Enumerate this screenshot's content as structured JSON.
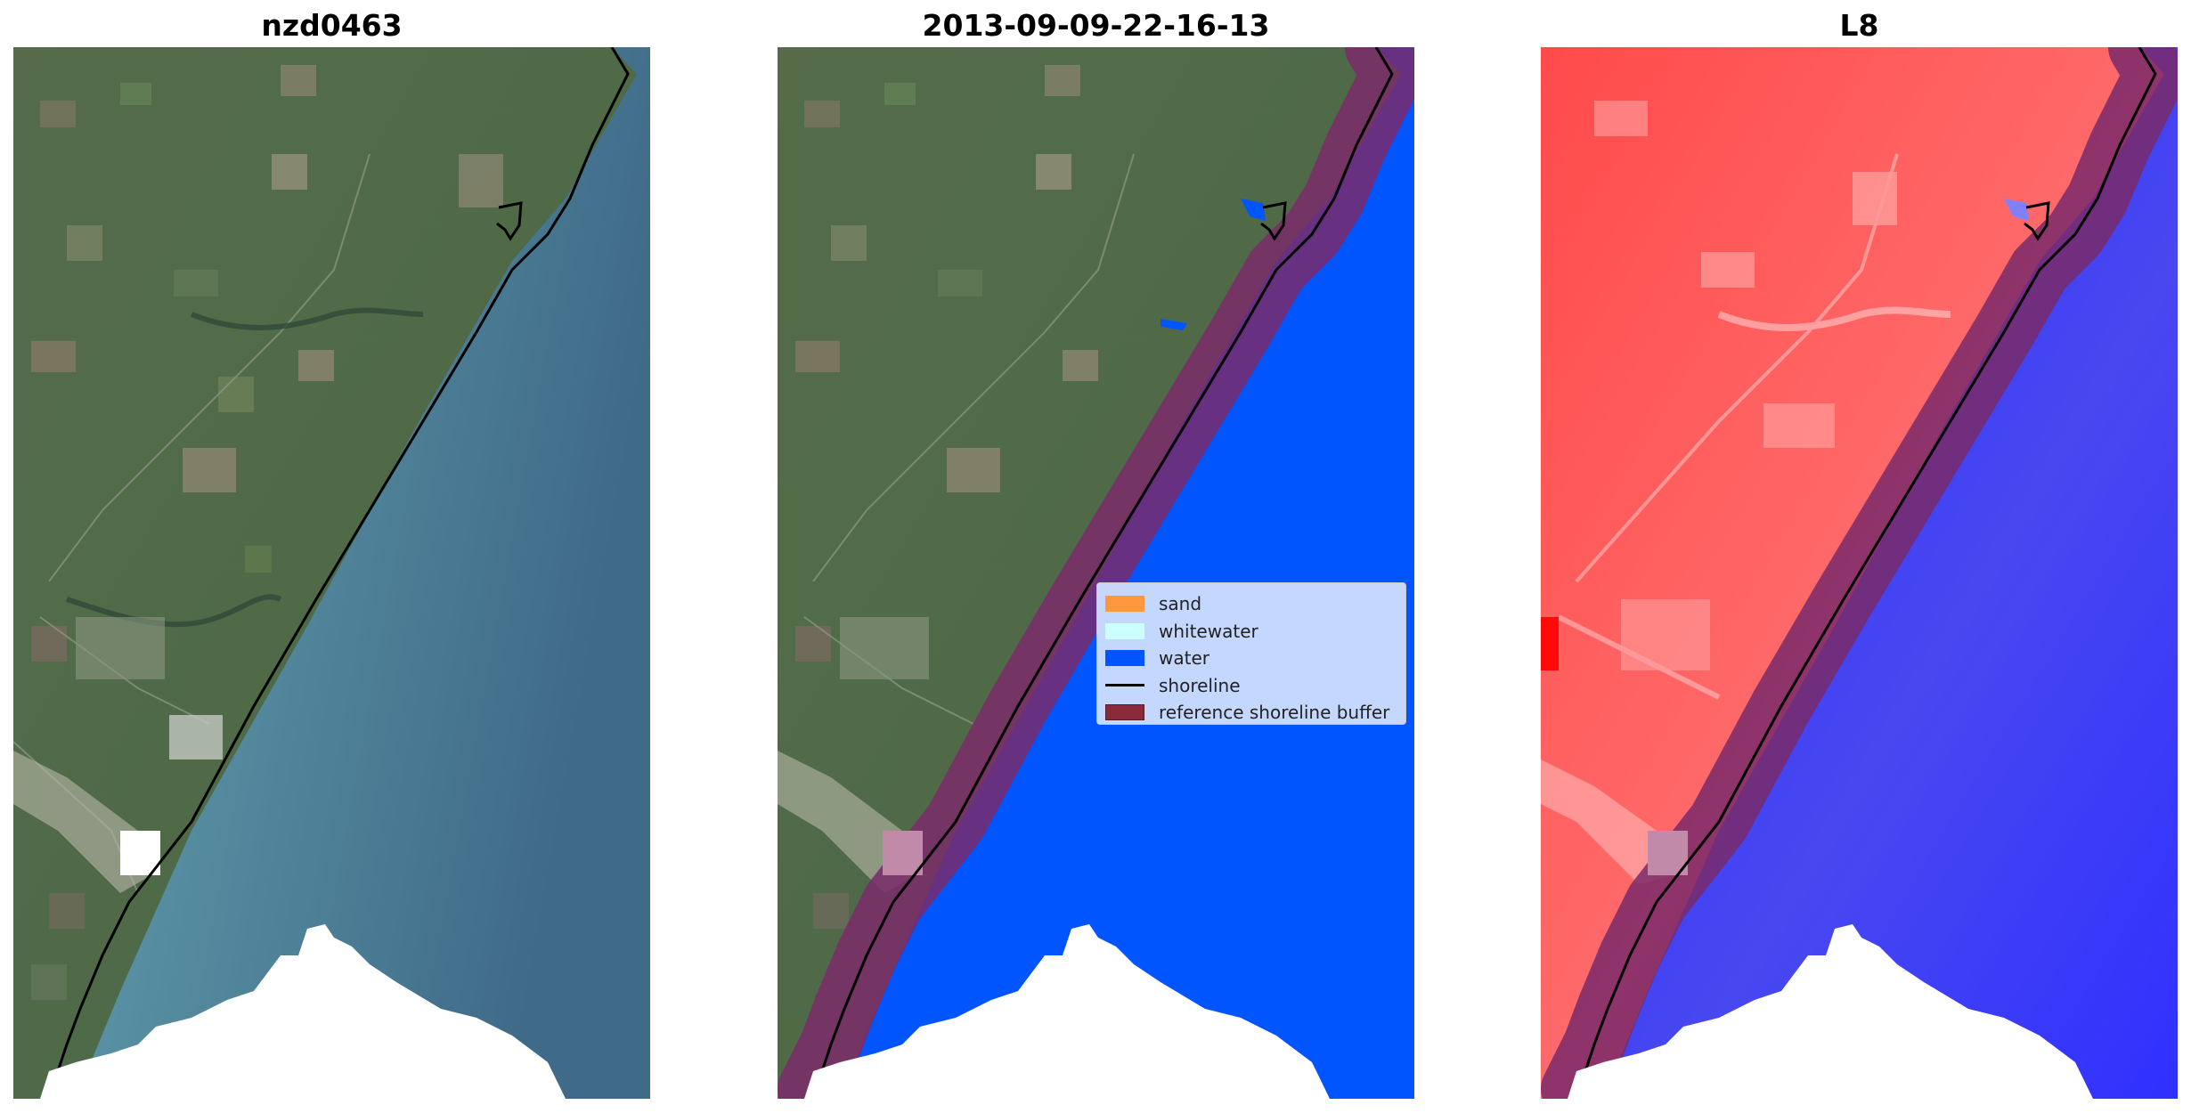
{
  "figure": {
    "panels": [
      {
        "title": "nzd0463",
        "content": "rgb-image"
      },
      {
        "title": "2013-09-09-22-16-13",
        "content": "classified-image"
      },
      {
        "title": "L8",
        "content": "water-index-image"
      }
    ],
    "legend": {
      "placement": "center-right of middle panel",
      "items": [
        {
          "label": "sand",
          "kind": "patch",
          "color": "#ff9640"
        },
        {
          "label": "whitewater",
          "kind": "patch",
          "color": "#ccffff"
        },
        {
          "label": "water",
          "kind": "patch",
          "color": "#0055ff"
        },
        {
          "label": "shoreline",
          "kind": "line",
          "color": "#000000"
        },
        {
          "label": "reference shoreline buffer",
          "kind": "patch",
          "color": "#8b2a3a"
        }
      ]
    },
    "colors": {
      "sea_rgb": "#4a7b92",
      "land_rgb": "#4f6a48",
      "water_class": "#0055ff",
      "buffer": "#7a2a6a",
      "index_land": "#ff4a4a",
      "index_water": "#2a2aff",
      "cloud_mask": "#ffffff"
    }
  }
}
